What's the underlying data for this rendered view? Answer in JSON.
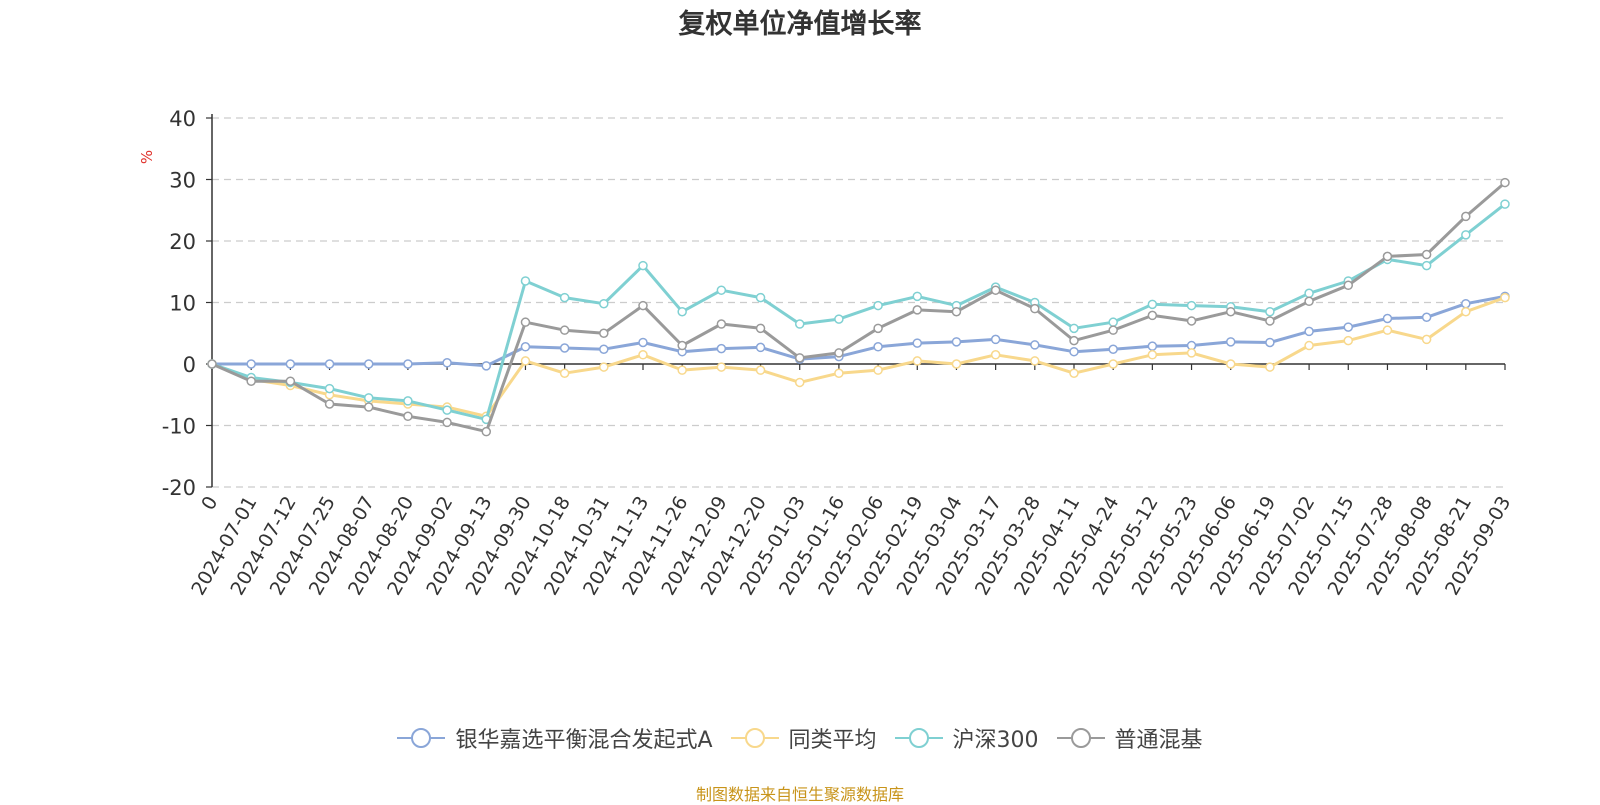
{
  "chart_data": {
    "type": "line",
    "title": "复权单位净值增长率",
    "unit_label": "%",
    "ylim": [
      -20,
      40
    ],
    "yticks": [
      -20,
      -10,
      0,
      10,
      20,
      30,
      40
    ],
    "grid": true,
    "legend_position": "bottom",
    "x_tick_labels": [
      "0",
      "2024-07-01",
      "2024-07-12",
      "2024-07-25",
      "2024-08-07",
      "2024-08-20",
      "2024-09-02",
      "2024-09-13",
      "2024-09-30",
      "2024-10-18",
      "2024-10-31",
      "2024-11-13",
      "2024-11-26",
      "2024-12-09",
      "2024-12-20",
      "2025-01-03",
      "2025-01-16",
      "2025-02-06",
      "2025-02-19",
      "2025-03-04",
      "2025-03-17",
      "2025-03-28",
      "2025-04-11",
      "2025-04-24",
      "2025-05-12",
      "2025-05-23",
      "2025-06-06",
      "2025-06-19",
      "2025-07-02",
      "2025-07-15",
      "2025-07-28",
      "2025-08-08",
      "2025-08-21",
      "2025-09-03"
    ],
    "series": [
      {
        "name": "银华嘉选平衡混合发起式A",
        "color": "#8aa6d8",
        "values": [
          0,
          0,
          0,
          0,
          0,
          0,
          0.2,
          -0.3,
          2.8,
          2.6,
          2.4,
          3.5,
          2.0,
          2.5,
          2.7,
          0.8,
          1.2,
          2.8,
          3.4,
          3.6,
          4.0,
          3.1,
          2.0,
          2.4,
          2.9,
          3.0,
          3.6,
          3.5,
          5.3,
          6.0,
          7.4,
          7.6,
          9.8,
          11.0
        ]
      },
      {
        "name": "同类平均",
        "color": "#f8d88c",
        "values": [
          0,
          -2.5,
          -3.5,
          -5.0,
          -6.0,
          -6.5,
          -7.0,
          -8.5,
          0.5,
          -1.5,
          -0.5,
          1.5,
          -1.0,
          -0.5,
          -1.0,
          -3.0,
          -1.5,
          -1.0,
          0.5,
          0.0,
          1.5,
          0.5,
          -1.5,
          0.0,
          1.5,
          1.8,
          0.0,
          -0.5,
          3.0,
          3.8,
          5.5,
          4.0,
          8.5,
          10.8
        ]
      },
      {
        "name": "沪深300",
        "color": "#7fd0d2",
        "values": [
          0,
          -2.2,
          -3.0,
          -4.0,
          -5.5,
          -6.0,
          -7.5,
          -9.0,
          13.5,
          10.8,
          9.8,
          16.0,
          8.5,
          12.0,
          10.8,
          6.5,
          7.3,
          9.5,
          11.0,
          9.5,
          12.5,
          10.0,
          5.8,
          6.8,
          9.7,
          9.5,
          9.3,
          8.5,
          11.5,
          13.5,
          17.0,
          16.0,
          21.0,
          26.0
        ]
      },
      {
        "name": "普通混基",
        "color": "#9a9a9a",
        "values": [
          0,
          -2.8,
          -2.8,
          -6.5,
          -7.0,
          -8.5,
          -9.5,
          -11.0,
          6.8,
          5.5,
          5.0,
          9.5,
          3.0,
          6.5,
          5.8,
          1.0,
          1.8,
          5.8,
          8.8,
          8.5,
          12.0,
          9.0,
          3.8,
          5.5,
          7.9,
          7.0,
          8.5,
          7.0,
          10.2,
          12.8,
          17.5,
          17.8,
          24.0,
          29.5
        ]
      }
    ]
  },
  "source_note": "制图数据来自恒生聚源数据库"
}
